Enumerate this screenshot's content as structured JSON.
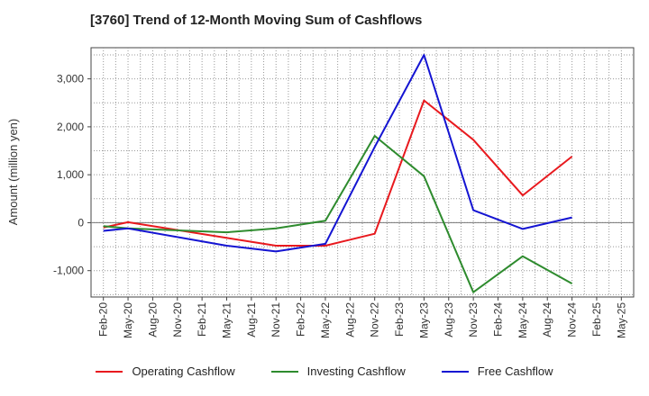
{
  "chart_data": {
    "type": "line",
    "title": "[3760]  Trend of 12-Month Moving Sum of Cashflows",
    "ylabel": "Amount (million yen)",
    "xlabel": "",
    "ylim": [
      -1550,
      3650
    ],
    "yticks": [
      -1000,
      0,
      1000,
      2000,
      3000
    ],
    "ytick_labels": [
      "-1,000",
      "0",
      "1,000",
      "2,000",
      "3,000"
    ],
    "x_labels": [
      "Feb-20",
      "May-20",
      "Aug-20",
      "Nov-20",
      "Feb-21",
      "May-21",
      "Aug-21",
      "Nov-21",
      "Feb-22",
      "May-22",
      "Aug-22",
      "Nov-22",
      "Feb-23",
      "May-23",
      "Aug-23",
      "Nov-23",
      "Feb-24",
      "May-24",
      "Aug-24",
      "Nov-24",
      "Feb-25",
      "May-25"
    ],
    "grid": true,
    "legend_position": "bottom",
    "series": [
      {
        "name": "Operating Cashflow",
        "color": "#e8191e",
        "points": [
          [
            "Feb-20",
            -100
          ],
          [
            "May-20",
            10
          ],
          [
            "Nov-21",
            -480
          ],
          [
            "May-22",
            -480
          ],
          [
            "Nov-22",
            -230
          ],
          [
            "May-23",
            2550
          ],
          [
            "Nov-23",
            1730
          ],
          [
            "May-24",
            570
          ],
          [
            "Nov-24",
            1380
          ]
        ]
      },
      {
        "name": "Investing Cashflow",
        "color": "#2e8b2e",
        "points": [
          [
            "Feb-20",
            -70
          ],
          [
            "May-20",
            -120
          ],
          [
            "May-21",
            -200
          ],
          [
            "Nov-21",
            -120
          ],
          [
            "May-22",
            40
          ],
          [
            "Nov-22",
            1810
          ],
          [
            "May-23",
            970
          ],
          [
            "Nov-23",
            -1450
          ],
          [
            "May-24",
            -700
          ],
          [
            "Nov-24",
            -1270
          ]
        ]
      },
      {
        "name": "Free Cashflow",
        "color": "#1414d2",
        "points": [
          [
            "Feb-20",
            -170
          ],
          [
            "May-20",
            -120
          ],
          [
            "May-21",
            -480
          ],
          [
            "Nov-21",
            -600
          ],
          [
            "May-22",
            -440
          ],
          [
            "Nov-22",
            1580
          ],
          [
            "May-23",
            3500
          ],
          [
            "Nov-23",
            260
          ],
          [
            "May-24",
            -130
          ],
          [
            "Nov-24",
            110
          ]
        ]
      }
    ]
  }
}
